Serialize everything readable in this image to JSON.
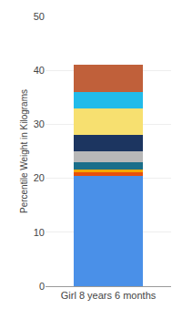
{
  "chart_data": {
    "type": "bar",
    "stacked": true,
    "categories": [
      "Girl 8 years 6 months"
    ],
    "series": [
      {
        "color": "#4A90E8",
        "values": [
          20.5
        ]
      },
      {
        "color": "#E8500A",
        "values": [
          0.7
        ]
      },
      {
        "color": "#F5A800",
        "values": [
          0.5
        ]
      },
      {
        "color": "#1A6E8A",
        "values": [
          1.3
        ]
      },
      {
        "color": "#B8B8B8",
        "values": [
          2.0
        ]
      },
      {
        "color": "#1C3560",
        "values": [
          3.0
        ]
      },
      {
        "color": "#F7E070",
        "values": [
          5.0
        ]
      },
      {
        "color": "#22BBEA",
        "values": [
          3.0
        ]
      },
      {
        "color": "#C0603A",
        "values": [
          5.0
        ]
      }
    ],
    "ylabel": "Percentile Weight in Kilograms",
    "ylim": [
      0,
      50
    ],
    "yticks": [
      0,
      10,
      20,
      30,
      40,
      50
    ],
    "grid": true
  }
}
